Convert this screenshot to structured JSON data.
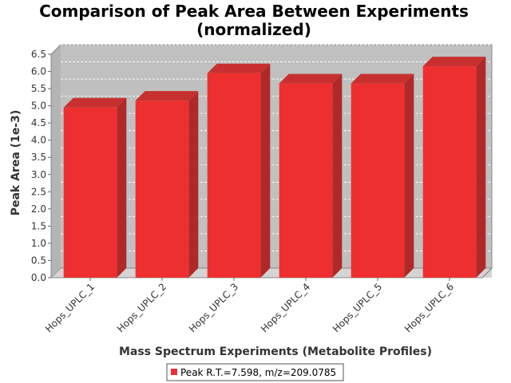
{
  "chart_data": {
    "type": "bar",
    "title_line1": "Comparison of Peak Area Between Experiments",
    "title_line2": "(normalized)",
    "xlabel": "Mass Spectrum Experiments (Metabolite Profiles)",
    "ylabel": "Peak Area (1e-3)",
    "categories": [
      "Hops_UPLC_1",
      "Hops_UPLC_2",
      "Hops_UPLC_3",
      "Hops_UPLC_4",
      "Hops_UPLC_5",
      "Hops_UPLC_6"
    ],
    "series": [
      {
        "name": "Peak R.T.=7.598, m/z=209.0785",
        "values": [
          4.95,
          5.15,
          5.95,
          5.65,
          5.65,
          6.15
        ],
        "color": "#ee2f2f"
      }
    ],
    "yticks": [
      "0.0",
      "0.5",
      "1.0",
      "1.5",
      "2.0",
      "2.5",
      "3.0",
      "3.5",
      "4.0",
      "4.5",
      "5.0",
      "5.5",
      "6.0",
      "6.5"
    ],
    "ylim": [
      0,
      6.5
    ],
    "grid": true,
    "legend_position": "bottom",
    "plot_background": "#c0c0c0"
  }
}
